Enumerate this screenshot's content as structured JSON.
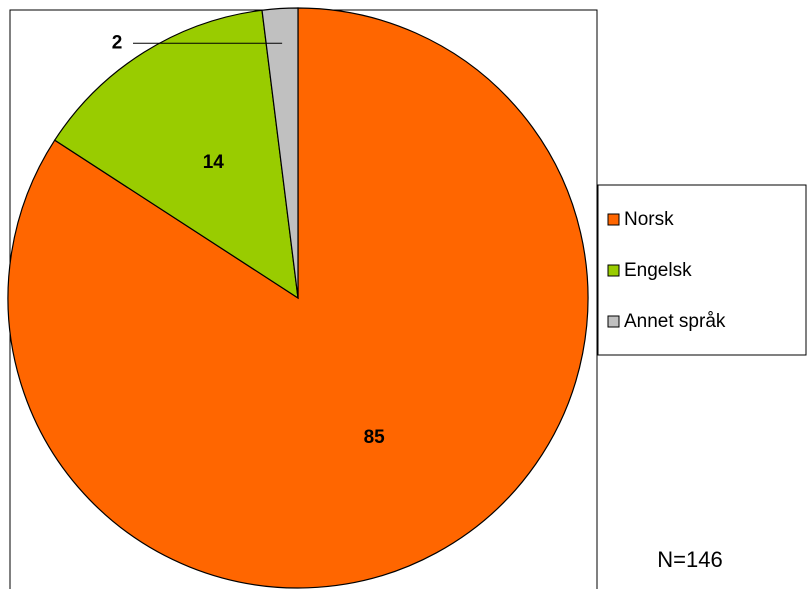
{
  "chart_data": {
    "type": "pie",
    "categories": [
      "Norsk",
      "Engelsk",
      "Annet språk"
    ],
    "values": [
      85,
      14,
      2
    ],
    "colors": [
      "#FF6600",
      "#99CC00",
      "#C0C0C0"
    ],
    "legend": "right",
    "annotation": "N=146"
  }
}
